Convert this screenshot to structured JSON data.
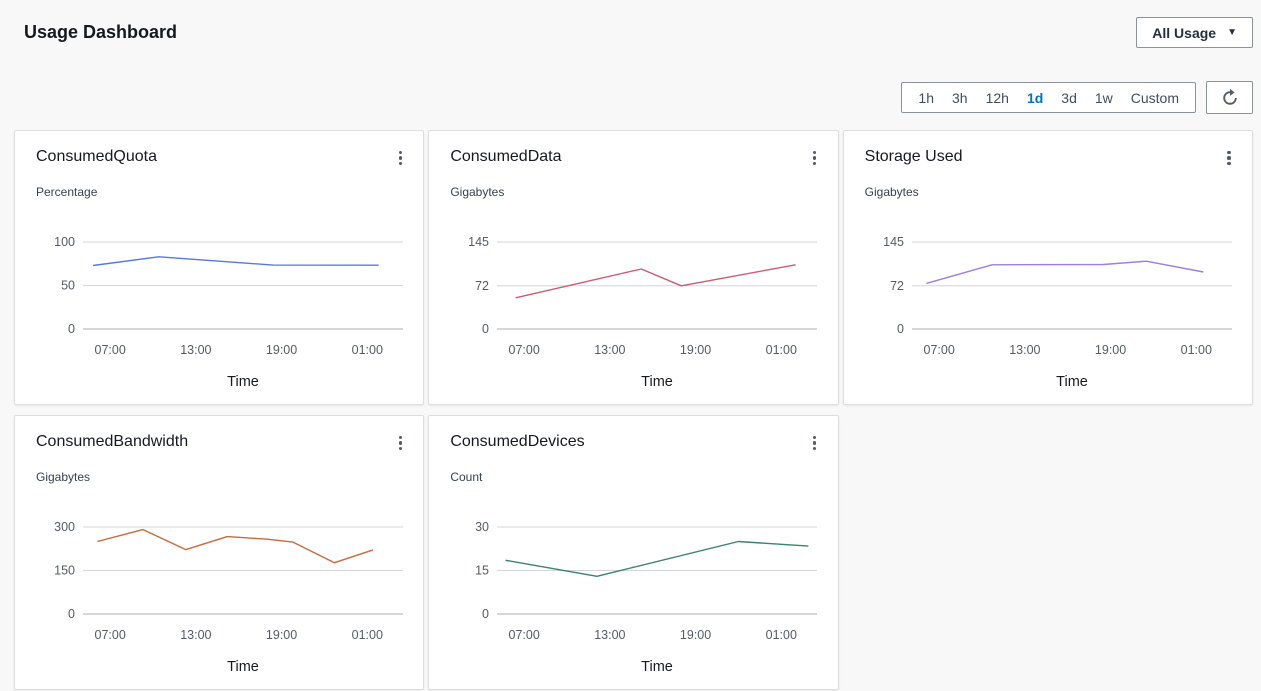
{
  "page": {
    "title": "Usage Dashboard"
  },
  "header": {
    "dashboard_selector": {
      "label": "All Usage",
      "caret_icon": "▼"
    }
  },
  "toolbar": {
    "time_ranges": [
      "1h",
      "3h",
      "12h",
      "1d",
      "3d",
      "1w",
      "Custom"
    ],
    "selected_range": "1d",
    "selected_color": "#0073bb",
    "refresh_icon": "refresh-circular-arrow"
  },
  "colors": {
    "grid_line": "#d2d6d9",
    "baseline": "#aab0b5",
    "tick_text": "#545b64",
    "axis_title_text": "#16191f"
  },
  "chart_data": [
    {
      "type": "line",
      "title": "ConsumedQuota",
      "ylabel": "Percentage",
      "xlabel": "Time",
      "menu_icon": "kebab-menu",
      "line_color": "#5778e0",
      "x_ticks": [
        "07:00",
        "13:00",
        "19:00",
        "01:00"
      ],
      "x_tick_hours": [
        7,
        13,
        19,
        25
      ],
      "x_range_hours": [
        5.1,
        27.5
      ],
      "y_ticks": [
        0,
        50,
        100
      ],
      "ylim": [
        0,
        100
      ],
      "series": [
        {
          "name": "ConsumedQuota",
          "points": [
            [
              5.8,
              73
            ],
            [
              10.4,
              83
            ],
            [
              15.0,
              77.5
            ],
            [
              18.4,
              73.5
            ],
            [
              25.8,
              73.3
            ]
          ]
        }
      ]
    },
    {
      "type": "line",
      "title": "ConsumedData",
      "ylabel": "Gigabytes",
      "xlabel": "Time",
      "menu_icon": "kebab-menu",
      "line_color": "#cc5b72",
      "x_ticks": [
        "07:00",
        "13:00",
        "19:00",
        "01:00"
      ],
      "x_tick_hours": [
        7,
        13,
        19,
        25
      ],
      "x_range_hours": [
        5.1,
        27.5
      ],
      "y_ticks": [
        0,
        72,
        145
      ],
      "ylim": [
        0,
        145
      ],
      "series": [
        {
          "name": "ConsumedData",
          "points": [
            [
              6.4,
              52
            ],
            [
              15.2,
              100
            ],
            [
              18.0,
              72
            ],
            [
              26.0,
              107
            ]
          ]
        }
      ]
    },
    {
      "type": "line",
      "title": "Storage Used",
      "ylabel": "Gigabytes",
      "xlabel": "Time",
      "menu_icon": "kebab-menu",
      "line_color": "#9f7ee0",
      "x_ticks": [
        "07:00",
        "13:00",
        "19:00",
        "01:00"
      ],
      "x_tick_hours": [
        7,
        13,
        19,
        25
      ],
      "x_range_hours": [
        5.1,
        27.5
      ],
      "y_ticks": [
        0,
        72,
        145
      ],
      "ylim": [
        0,
        145
      ],
      "series": [
        {
          "name": "Storage Used",
          "points": [
            [
              6.1,
              76
            ],
            [
              10.7,
              107
            ],
            [
              18.5,
              107.5
            ],
            [
              21.5,
              113
            ],
            [
              25.5,
              95
            ]
          ]
        }
      ]
    },
    {
      "type": "line",
      "title": "ConsumedBandwidth",
      "ylabel": "Gigabytes",
      "xlabel": "Time",
      "menu_icon": "kebab-menu",
      "line_color": "#c96a3b",
      "x_ticks": [
        "07:00",
        "13:00",
        "19:00",
        "01:00"
      ],
      "x_tick_hours": [
        7,
        13,
        19,
        25
      ],
      "x_range_hours": [
        5.1,
        27.5
      ],
      "y_ticks": [
        0,
        150,
        300
      ],
      "ylim": [
        0,
        300
      ],
      "series": [
        {
          "name": "ConsumedBandwidth",
          "points": [
            [
              6.1,
              250
            ],
            [
              9.3,
              291
            ],
            [
              12.3,
              222
            ],
            [
              15.2,
              267
            ],
            [
              18.0,
              258
            ],
            [
              19.8,
              248
            ],
            [
              22.7,
              177
            ],
            [
              25.4,
              221
            ]
          ]
        }
      ]
    },
    {
      "type": "line",
      "title": "ConsumedDevices",
      "ylabel": "Count",
      "xlabel": "Time",
      "menu_icon": "kebab-menu",
      "line_color": "#38836c",
      "x_ticks": [
        "07:00",
        "13:00",
        "19:00",
        "01:00"
      ],
      "x_tick_hours": [
        7,
        13,
        19,
        25
      ],
      "x_range_hours": [
        5.1,
        27.5
      ],
      "y_ticks": [
        0,
        15,
        30
      ],
      "ylim": [
        0,
        30
      ],
      "series": [
        {
          "name": "ConsumedDevices",
          "points": [
            [
              5.7,
              18.5
            ],
            [
              12.1,
              13
            ],
            [
              22.0,
              25
            ],
            [
              26.9,
              23.4
            ]
          ]
        }
      ]
    }
  ]
}
